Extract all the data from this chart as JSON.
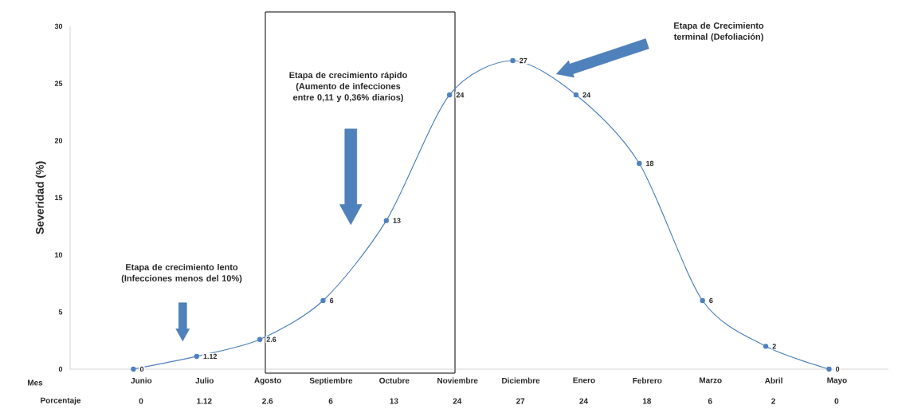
{
  "chart_data": {
    "type": "line",
    "ylabel": "Severidad (%)",
    "categories": [
      "Junio",
      "Julio",
      "Agosto",
      "Septiembre",
      "Octubre",
      "Noviembre",
      "Diciembre",
      "Enero",
      "Febrero",
      "Marzo",
      "Abril",
      "Mayo"
    ],
    "values": [
      0,
      1.12,
      2.6,
      6,
      13,
      24,
      27,
      24,
      18,
      6,
      2,
      0
    ],
    "value_labels": [
      "0",
      "1.12",
      "2.6",
      "6",
      "13",
      "24",
      "27",
      "24",
      "18",
      "6",
      "2",
      "0"
    ],
    "color": "#4f81bd",
    "ylim": [
      0,
      30
    ],
    "yticks": [
      0,
      5,
      10,
      15,
      20,
      25,
      30
    ],
    "marker": "circle",
    "line_style": "solid",
    "annotations": [
      "Etapa de crecimiento lento (Infecciones menos del 10%)",
      "Etapa de crecimiento rápido (Aumento de infecciones entre 0,11 y 0,36% diarios)",
      "Etapa de Crecimiento terminal (Defoliación)",
      "Mes",
      "Porcentaje",
      "0",
      "1.12",
      "2.6",
      "6",
      "13",
      "24",
      "27",
      "24",
      "18",
      "6",
      "2",
      "0"
    ]
  }
}
